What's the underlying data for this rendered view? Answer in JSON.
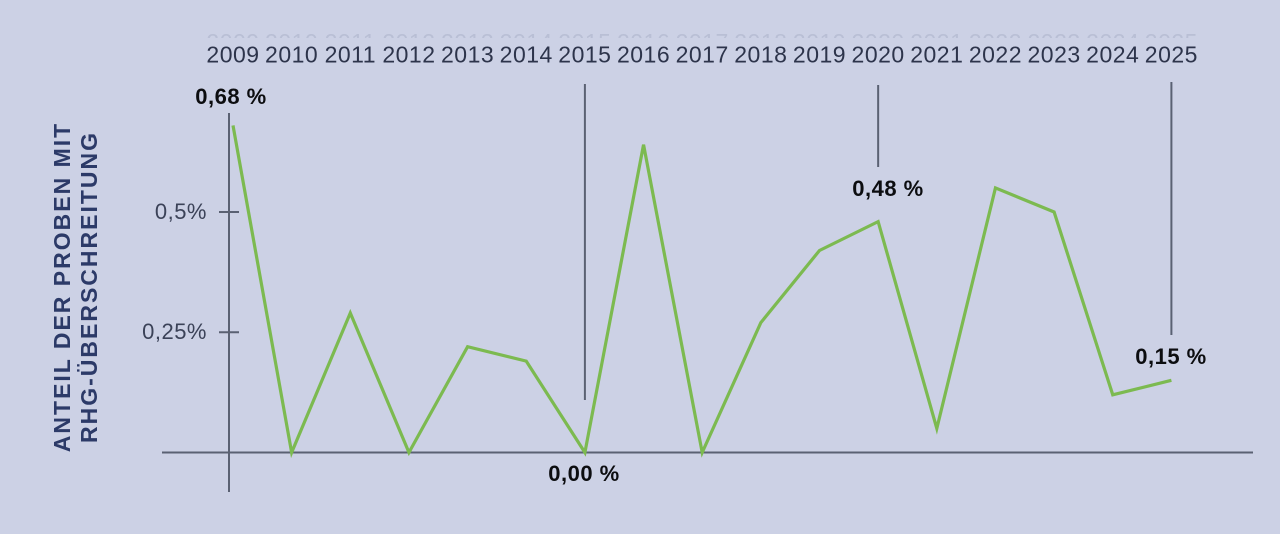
{
  "colors": {
    "background": "#ccd1e5",
    "line": "#7cba50",
    "axis": "#5a6173",
    "year_label": "#2d344b",
    "ghost_label": "#aab1c8",
    "tick_label": "#3b4258",
    "annotation": "#0c0d10",
    "side_label": "#2c3a68"
  },
  "side_label": {
    "line1": "ANTEIL DER PROBEN MIT",
    "line2": "RHG-ÜBERSCHREITUNG"
  },
  "chart_data": {
    "type": "line",
    "title": "",
    "xlabel": "",
    "ylabel": "ANTEIL DER PROBEN MIT RHG-ÜBERSCHREITUNG",
    "unit": "%",
    "grid": false,
    "legend": null,
    "ylim": [
      0,
      0.72
    ],
    "categories": [
      "2009",
      "2010",
      "2011",
      "2012",
      "2013",
      "2014",
      "2015",
      "2016",
      "2017",
      "2018",
      "2019",
      "2020",
      "2021",
      "2022",
      "2023",
      "2024",
      "2025"
    ],
    "values": [
      0.68,
      0.0,
      0.29,
      0.0,
      0.22,
      0.19,
      0.0,
      0.64,
      0.0,
      0.27,
      0.42,
      0.48,
      0.05,
      0.55,
      0.5,
      0.12,
      0.15
    ],
    "yticks": [
      {
        "value": 0.5,
        "label": "0,5%"
      },
      {
        "value": 0.25,
        "label": "0,25%"
      }
    ],
    "annotations": [
      {
        "year": "2009",
        "value": 0.68,
        "label": "0,68 %"
      },
      {
        "year": "2015",
        "value": 0.0,
        "label": "0,00 %"
      },
      {
        "year": "2020",
        "value": 0.48,
        "label": "0,48 %"
      },
      {
        "year": "2025",
        "value": 0.15,
        "label": "0,15 %"
      }
    ]
  }
}
